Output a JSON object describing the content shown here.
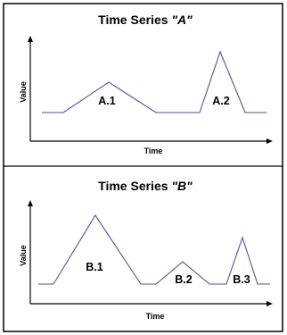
{
  "panel_a": {
    "title_prefix": "Time Series ",
    "title_name": "\"A\"",
    "y_label": "Value",
    "x_label": "Time",
    "peaks": [
      "A.1",
      "A.2"
    ]
  },
  "panel_b": {
    "title_prefix": "Time Series ",
    "title_name": "\"B\"",
    "y_label": "Value",
    "x_label": "Time",
    "peaks": [
      "B.1",
      "B.2",
      "B.3"
    ]
  },
  "colors": {
    "series_line": "#4f4f9f",
    "axes": "#000000",
    "frame": "#000000"
  }
}
